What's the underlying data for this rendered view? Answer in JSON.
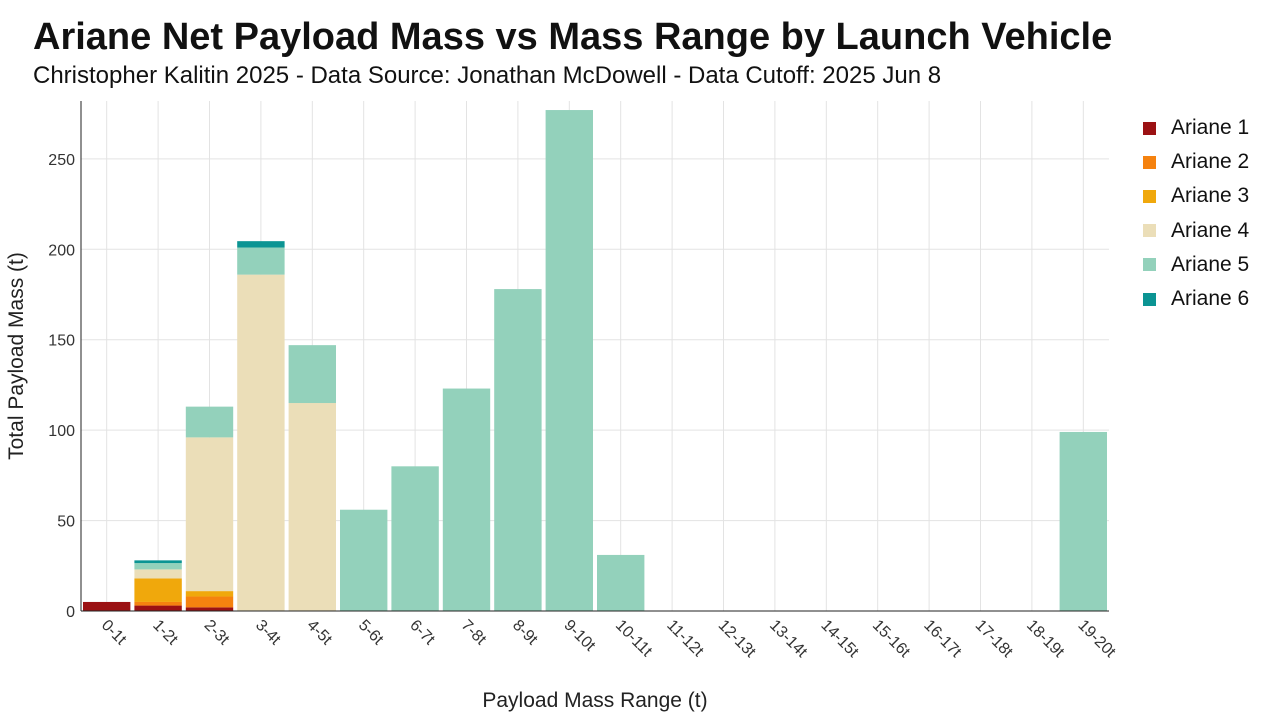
{
  "chart_data": {
    "type": "bar",
    "stacked": true,
    "title": "Ariane Net Payload Mass vs Mass Range by Launch Vehicle",
    "subtitle": "Christopher Kalitin 2025 - Data Source: Jonathan McDowell - Data Cutoff: 2025 Jun 8",
    "xlabel": "Payload Mass Range (t)",
    "ylabel": "Total Payload Mass (t)",
    "ylim": [
      0,
      282
    ],
    "yticks": [
      0,
      50,
      100,
      150,
      200,
      250
    ],
    "grid": true,
    "legend_position": "right",
    "categories": [
      "0-1t",
      "1-2t",
      "2-3t",
      "3-4t",
      "4-5t",
      "5-6t",
      "6-7t",
      "7-8t",
      "8-9t",
      "9-10t",
      "10-11t",
      "11-12t",
      "12-13t",
      "13-14t",
      "14-15t",
      "15-16t",
      "16-17t",
      "17-18t",
      "18-19t",
      "19-20t"
    ],
    "series": [
      {
        "name": "Ariane 1",
        "color": "#9b1113",
        "values": [
          5,
          3,
          2,
          0,
          0,
          0,
          0,
          0,
          0,
          0,
          0,
          0,
          0,
          0,
          0,
          0,
          0,
          0,
          0,
          0
        ]
      },
      {
        "name": "Ariane 2",
        "color": "#f5820f",
        "values": [
          0,
          2,
          6,
          0,
          0,
          0,
          0,
          0,
          0,
          0,
          0,
          0,
          0,
          0,
          0,
          0,
          0,
          0,
          0,
          0
        ]
      },
      {
        "name": "Ariane 3",
        "color": "#f0a80c",
        "values": [
          0,
          13,
          3,
          0,
          0,
          0,
          0,
          0,
          0,
          0,
          0,
          0,
          0,
          0,
          0,
          0,
          0,
          0,
          0,
          0
        ]
      },
      {
        "name": "Ariane 4",
        "color": "#ebdeb8",
        "values": [
          0,
          5,
          85,
          186,
          115,
          0,
          0,
          0,
          0,
          0,
          0,
          0,
          0,
          0,
          0,
          0,
          0,
          0,
          0,
          0
        ]
      },
      {
        "name": "Ariane 5",
        "color": "#93d1bb",
        "values": [
          0,
          3.5,
          17,
          15,
          32,
          56,
          80,
          123,
          178,
          277,
          31,
          0,
          0,
          0,
          0,
          0,
          0,
          0,
          0,
          99
        ]
      },
      {
        "name": "Ariane 6",
        "color": "#0b9493",
        "values": [
          0,
          1.5,
          0,
          3.5,
          0,
          0,
          0,
          0,
          0,
          0,
          0,
          0,
          0,
          0,
          0,
          0,
          0,
          0,
          0,
          0
        ]
      }
    ]
  }
}
